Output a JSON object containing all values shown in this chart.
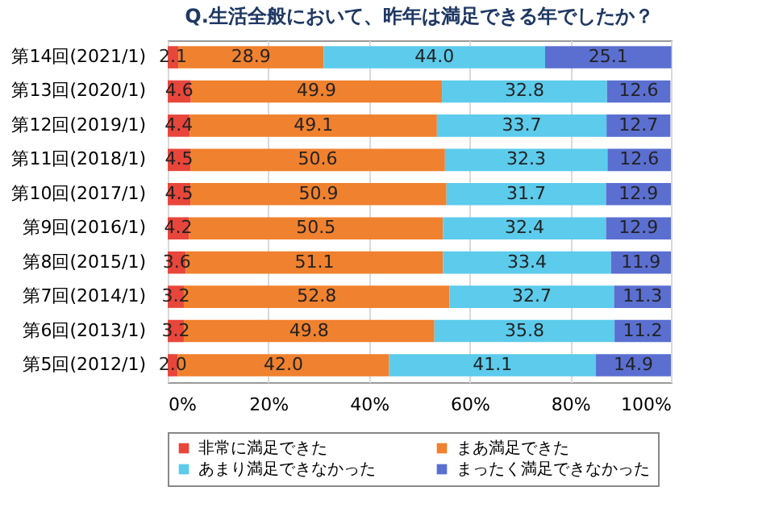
{
  "chart_data": {
    "type": "bar",
    "orientation": "horizontal",
    "stacked": true,
    "title": "Q.生活全般において、昨年は満足できる年でしたか？",
    "categories": [
      "第14回(2021/1)",
      "第13回(2020/1)",
      "第12回(2019/1)",
      "第11回(2018/1)",
      "第10回(2017/1)",
      "第9回(2016/1)",
      "第8回(2015/1)",
      "第7回(2014/1)",
      "第6回(2013/1)",
      "第5回(2012/1)"
    ],
    "series": [
      {
        "name": "非常に満足できた",
        "color": "#e8463b",
        "values": [
          2.1,
          4.6,
          4.4,
          4.5,
          4.5,
          4.2,
          3.6,
          3.2,
          3.2,
          2.0
        ],
        "value_labels": [
          "2.1",
          "4.6",
          "4.4",
          "4.5",
          "4.5",
          "4.2",
          "3.6",
          "3.2",
          "3.2",
          "2.0"
        ]
      },
      {
        "name": "まあ満足できた",
        "color": "#f0812e",
        "values": [
          28.9,
          49.9,
          49.1,
          50.6,
          50.9,
          50.5,
          51.1,
          52.8,
          49.8,
          42.0
        ],
        "value_labels": [
          "28.9",
          "49.9",
          "49.1",
          "50.6",
          "50.9",
          "50.5",
          "51.1",
          "52.8",
          "49.8",
          "42.0"
        ]
      },
      {
        "name": "あまり満足できなかった",
        "color": "#5ccbec",
        "values": [
          44.0,
          32.8,
          33.7,
          32.3,
          31.7,
          32.4,
          33.4,
          32.7,
          35.8,
          41.1
        ],
        "value_labels": [
          "44.0",
          "32.8",
          "33.7",
          "32.3",
          "31.7",
          "32.4",
          "33.4",
          "32.7",
          "35.8",
          "41.1"
        ]
      },
      {
        "name": "まったく満足できなかった",
        "color": "#5a6fd0",
        "values": [
          25.1,
          12.6,
          12.7,
          12.6,
          12.9,
          12.9,
          11.9,
          11.3,
          11.2,
          14.9
        ],
        "value_labels": [
          "25.1",
          "12.6",
          "12.7",
          "12.6",
          "12.9",
          "12.9",
          "11.9",
          "11.3",
          "11.2",
          "14.9"
        ]
      }
    ],
    "xlim": [
      0,
      100
    ],
    "xticks": [
      {
        "value": 0,
        "label": "0%"
      },
      {
        "value": 20,
        "label": "20%"
      },
      {
        "value": 40,
        "label": "40%"
      },
      {
        "value": 60,
        "label": "60%"
      },
      {
        "value": 80,
        "label": "80%"
      },
      {
        "value": 100,
        "label": "100%"
      }
    ],
    "grid": "x",
    "legend": "bottom"
  }
}
